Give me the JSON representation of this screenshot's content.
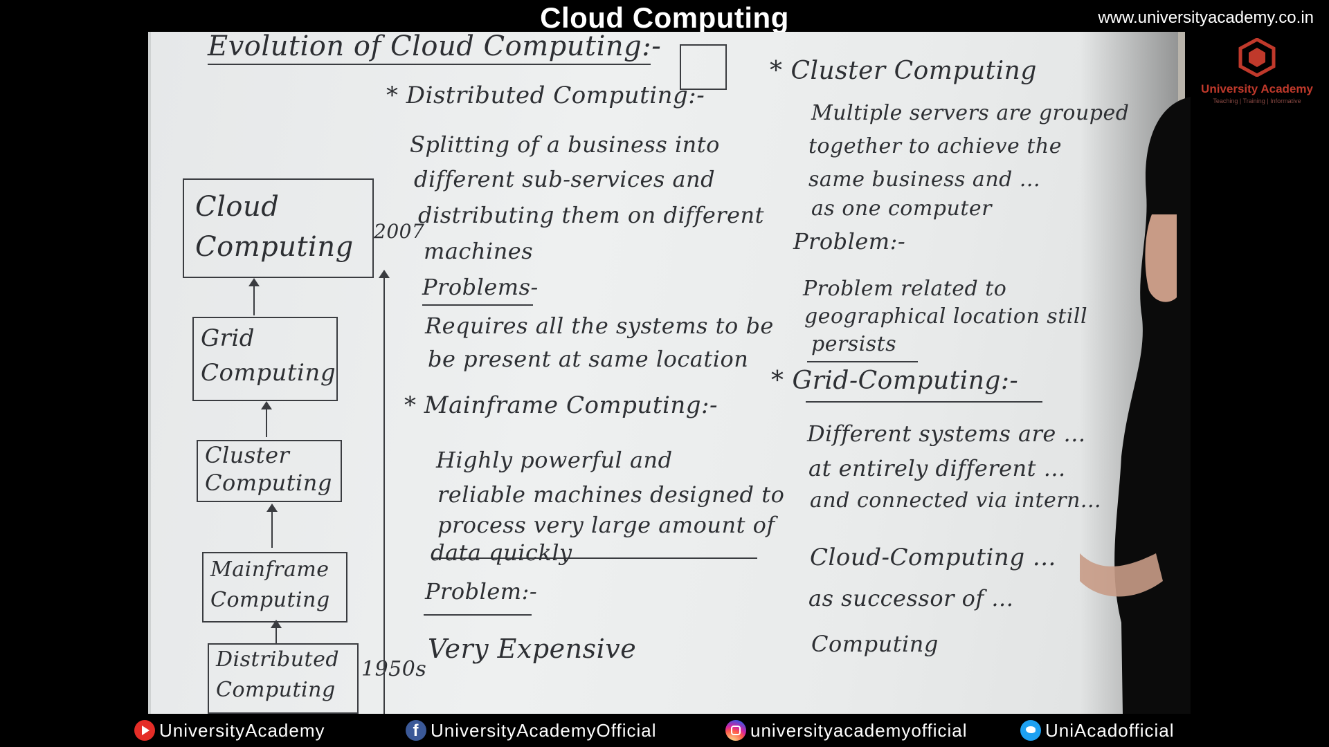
{
  "header": {
    "title": "Cloud Computing",
    "website": "www.universityacademy.co.in"
  },
  "logo": {
    "name": "University Academy",
    "tagline": "Teaching | Training | Informative"
  },
  "board": {
    "heading": "Evolution of Cloud Computing:-",
    "timeline": {
      "boxes": [
        "Cloud Computing",
        "Grid Computing",
        "Cluster Computing",
        "Mainframe Computing",
        "Distributed Computing"
      ],
      "year_top": "2007",
      "year_bottom": "1950s"
    },
    "middle": {
      "distributed_heading": "* Distributed Computing:-",
      "distributed_text": [
        "Splitting of a business into",
        "different sub-services and",
        "distributing them on different",
        "machines"
      ],
      "problems_label": "Problems-",
      "distributed_problem": [
        "Requires all the systems to be",
        "be present at same location"
      ],
      "mainframe_heading": "* Mainframe Computing:-",
      "mainframe_text": [
        "Highly powerful and",
        "reliable machines designed to",
        "process very large amount of",
        "data quickly"
      ],
      "mainframe_problem_label": "Problem:-",
      "mainframe_problem": "Very Expensive"
    },
    "right": {
      "cluster_heading": "* Cluster Computing",
      "cluster_text": [
        "Multiple servers are grouped",
        "together to achieve the",
        "same business and ...",
        "as one computer"
      ],
      "problem_label": "Problem:-",
      "cluster_problem": [
        "Problem related to",
        "geographical location still",
        "persists"
      ],
      "grid_heading": "* Grid-Computing:-",
      "grid_text": [
        "Different systems are ...",
        "at entirely different ...",
        "and connected via intern..."
      ],
      "cloud_text": [
        "Cloud-Computing ...",
        "as successor of ...",
        "Computing"
      ]
    }
  },
  "footer": {
    "youtube": "UniversityAcademy",
    "facebook": "UniversityAcademyOfficial",
    "instagram": "universityacademyofficial",
    "twitter": "UniAcadofficial"
  }
}
